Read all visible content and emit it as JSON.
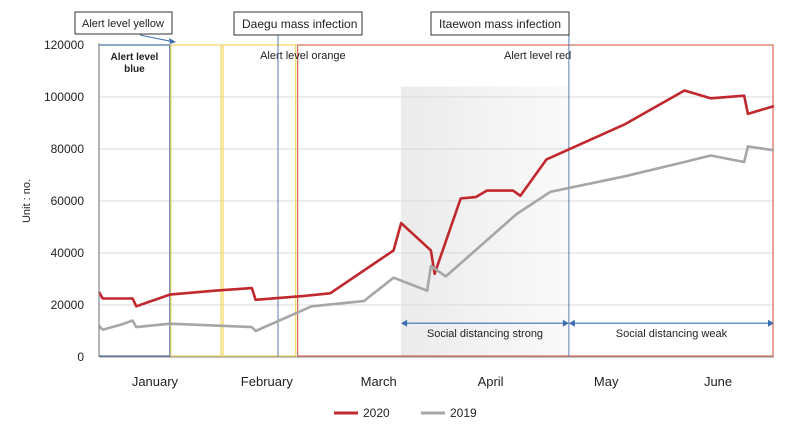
{
  "chart_data": {
    "type": "line",
    "ylabel": "Unit : no.",
    "ylim": [
      0,
      120000
    ],
    "yticks": [
      0,
      20000,
      40000,
      60000,
      80000,
      100000,
      120000
    ],
    "xlim": [
      "2020-01-01",
      "2020-06-30"
    ],
    "months": [
      {
        "label": "January",
        "date": "2020-01-16"
      },
      {
        "label": "February",
        "date": "2020-02-15"
      },
      {
        "label": "March",
        "date": "2020-03-16"
      },
      {
        "label": "April",
        "date": "2020-04-15"
      },
      {
        "label": "May",
        "date": "2020-05-16"
      },
      {
        "label": "June",
        "date": "2020-06-15"
      }
    ],
    "grid": true,
    "legend_position": "bottom",
    "series": [
      {
        "name": "2020",
        "color": "#c0282d",
        "points": [
          [
            "2020-01-01",
            25000
          ],
          [
            "2020-01-02",
            22500
          ],
          [
            "2020-01-10",
            22500
          ],
          [
            "2020-01-11",
            19500
          ],
          [
            "2020-01-14",
            21000
          ],
          [
            "2020-01-20",
            24000
          ],
          [
            "2020-02-01",
            25500
          ],
          [
            "2020-02-11",
            26500
          ],
          [
            "2020-02-12",
            22000
          ],
          [
            "2020-02-25",
            23500
          ],
          [
            "2020-03-03",
            24500
          ],
          [
            "2020-03-20",
            41000
          ],
          [
            "2020-03-22",
            51500
          ],
          [
            "2020-03-30",
            41000
          ],
          [
            "2020-03-31",
            32000
          ],
          [
            "2020-04-07",
            61000
          ],
          [
            "2020-04-11",
            61500
          ],
          [
            "2020-04-14",
            64000
          ],
          [
            "2020-04-21",
            64000
          ],
          [
            "2020-04-23",
            62000
          ],
          [
            "2020-04-30",
            76000
          ],
          [
            "2020-05-21",
            89500
          ],
          [
            "2020-06-06",
            102500
          ],
          [
            "2020-06-13",
            99500
          ],
          [
            "2020-06-22",
            100500
          ],
          [
            "2020-06-23",
            93500
          ],
          [
            "2020-06-30",
            96500
          ]
        ]
      },
      {
        "name": "2019",
        "color": "#a6a6a6",
        "points": [
          [
            "2020-01-01",
            12000
          ],
          [
            "2020-01-02",
            10500
          ],
          [
            "2020-01-07",
            12500
          ],
          [
            "2020-01-10",
            14000
          ],
          [
            "2020-01-11",
            11500
          ],
          [
            "2020-01-20",
            12800
          ],
          [
            "2020-02-11",
            11500
          ],
          [
            "2020-02-12",
            10000
          ],
          [
            "2020-02-27",
            19500
          ],
          [
            "2020-03-12",
            21500
          ],
          [
            "2020-03-20",
            30500
          ],
          [
            "2020-03-29",
            25500
          ],
          [
            "2020-03-30",
            35000
          ],
          [
            "2020-04-03",
            31000
          ],
          [
            "2020-04-22",
            55000
          ],
          [
            "2020-05-01",
            63500
          ],
          [
            "2020-05-21",
            69500
          ],
          [
            "2020-06-06",
            75000
          ],
          [
            "2020-06-13",
            77500
          ],
          [
            "2020-06-22",
            75000
          ],
          [
            "2020-06-23",
            81000
          ],
          [
            "2020-06-30",
            79500
          ]
        ]
      }
    ],
    "periods": [
      {
        "label": "Alert level blue",
        "label_lines": [
          "Alert level",
          "blue"
        ],
        "start": "2020-01-01",
        "end": "2020-01-20",
        "color": "#4a6fa5"
      },
      {
        "label": "Alert level yellow",
        "start": "2020-01-20",
        "end": "2020-02-03",
        "color": "#f0d860"
      },
      {
        "label": "Alert level orange",
        "start": "2020-02-03",
        "end": "2020-02-23",
        "color": "#f0d860"
      },
      {
        "label": "Alert level red",
        "start": "2020-02-23",
        "end": "2020-06-30",
        "color": "#d96b55"
      }
    ],
    "shaded_region": {
      "start": "2020-03-22",
      "end": "2020-05-06",
      "color": "#ebebeb"
    },
    "event_lines": [
      {
        "label": "Daegu mass infection",
        "date": "2020-02-18",
        "color": "#5a7fb0"
      },
      {
        "label": "Itaewon mass infection",
        "date": "2020-05-06",
        "color": "#5a7fb0"
      }
    ],
    "annotations": [
      {
        "label": "Social distancing strong",
        "start": "2020-03-22",
        "end": "2020-05-06",
        "value": 13000,
        "color": "#3b6fb0"
      },
      {
        "label": "Social distancing weak",
        "start": "2020-05-06",
        "end": "2020-06-30",
        "value": 13000,
        "color": "#3b6fb0"
      }
    ]
  }
}
